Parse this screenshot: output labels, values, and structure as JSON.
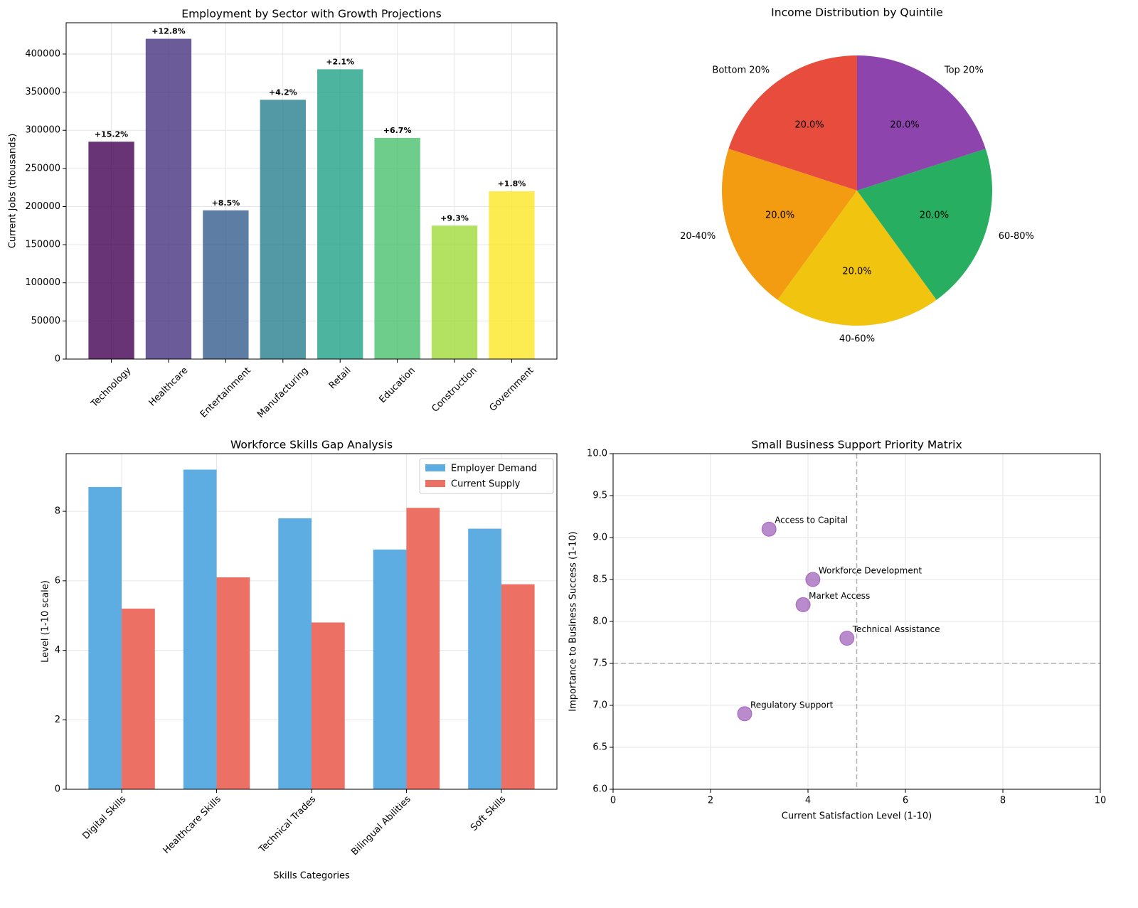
{
  "chart_data": [
    {
      "type": "bar",
      "title": "Employment by Sector with Growth Projections",
      "ylabel": "Current Jobs (thousands)",
      "categories": [
        "Technology",
        "Healthcare",
        "Entertainment",
        "Manufacturing",
        "Retail",
        "Education",
        "Construction",
        "Government"
      ],
      "values": [
        285000,
        420000,
        195000,
        340000,
        380000,
        290000,
        175000,
        220000
      ],
      "annotations": [
        "+15.2%",
        "+12.8%",
        "+8.5%",
        "+4.2%",
        "+2.1%",
        "+6.7%",
        "+9.3%",
        "+1.8%"
      ],
      "colors": [
        "#440154",
        "#46327e",
        "#365c8d",
        "#277f8e",
        "#1fa187",
        "#4ac16d",
        "#a0da39",
        "#fde725"
      ],
      "ylim": [
        0,
        441000
      ],
      "yticks": [
        0,
        50000,
        100000,
        150000,
        200000,
        250000,
        300000,
        350000,
        400000
      ],
      "grid": true
    },
    {
      "type": "pie",
      "title": "Income Distribution by Quintile",
      "categories": [
        "Bottom 20%",
        "20-40%",
        "40-60%",
        "60-80%",
        "Top 20%"
      ],
      "values": [
        20,
        20,
        20,
        20,
        20
      ],
      "value_labels": [
        "20.0%",
        "20.0%",
        "20.0%",
        "20.0%",
        "20.0%"
      ],
      "colors": [
        "#e74c3c",
        "#f39c12",
        "#f1c40f",
        "#27ae60",
        "#8e44ad"
      ],
      "startangle": 90
    },
    {
      "type": "grouped_bar",
      "title": "Workforce Skills Gap Analysis",
      "xlabel": "Skills Categories",
      "ylabel": "Level (1-10 scale)",
      "categories": [
        "Digital Skills",
        "Healthcare Skills",
        "Technical Trades",
        "Bilingual Abilities",
        "Soft Skills"
      ],
      "series": [
        {
          "name": "Employer Demand",
          "color": "#5dade2",
          "values": [
            8.7,
            9.2,
            7.8,
            6.9,
            7.5
          ]
        },
        {
          "name": "Current Supply",
          "color": "#ec7063",
          "values": [
            5.2,
            6.1,
            4.8,
            8.1,
            5.9
          ]
        }
      ],
      "ylim": [
        0,
        9.66
      ],
      "yticks": [
        0,
        2,
        4,
        6,
        8
      ],
      "grid": true,
      "legend": "upper-right"
    },
    {
      "type": "scatter",
      "title": "Small Business Support Priority Matrix",
      "xlabel": "Current Satisfaction Level (1-10)",
      "ylabel": "Importance to Business Success (1-10)",
      "labels": [
        "Access to Capital",
        "Workforce Development",
        "Market Access",
        "Technical Assistance",
        "Regulatory Support"
      ],
      "x": [
        3.2,
        4.1,
        3.9,
        4.8,
        2.7
      ],
      "values": [
        9.1,
        8.5,
        8.2,
        7.8,
        6.9
      ],
      "color": "#9b59b6",
      "xlim": [
        0,
        10
      ],
      "xticks": [
        0,
        2,
        4,
        6,
        8,
        10
      ],
      "ylim": [
        6,
        10
      ],
      "yticks": [
        {
          "value": 6,
          "label": "6.0"
        },
        {
          "value": 6.5,
          "label": "6.5"
        },
        {
          "value": 7,
          "label": "7.0"
        },
        {
          "value": 7.5,
          "label": "7.5"
        },
        {
          "value": 8,
          "label": "8.0"
        },
        {
          "value": 8.5,
          "label": "8.5"
        },
        {
          "value": 9,
          "label": "9.0"
        },
        {
          "value": 9.5,
          "label": "9.5"
        },
        {
          "value": 10,
          "label": "10.0"
        }
      ],
      "vline": 5,
      "hline": 7.5,
      "grid": true
    }
  ]
}
